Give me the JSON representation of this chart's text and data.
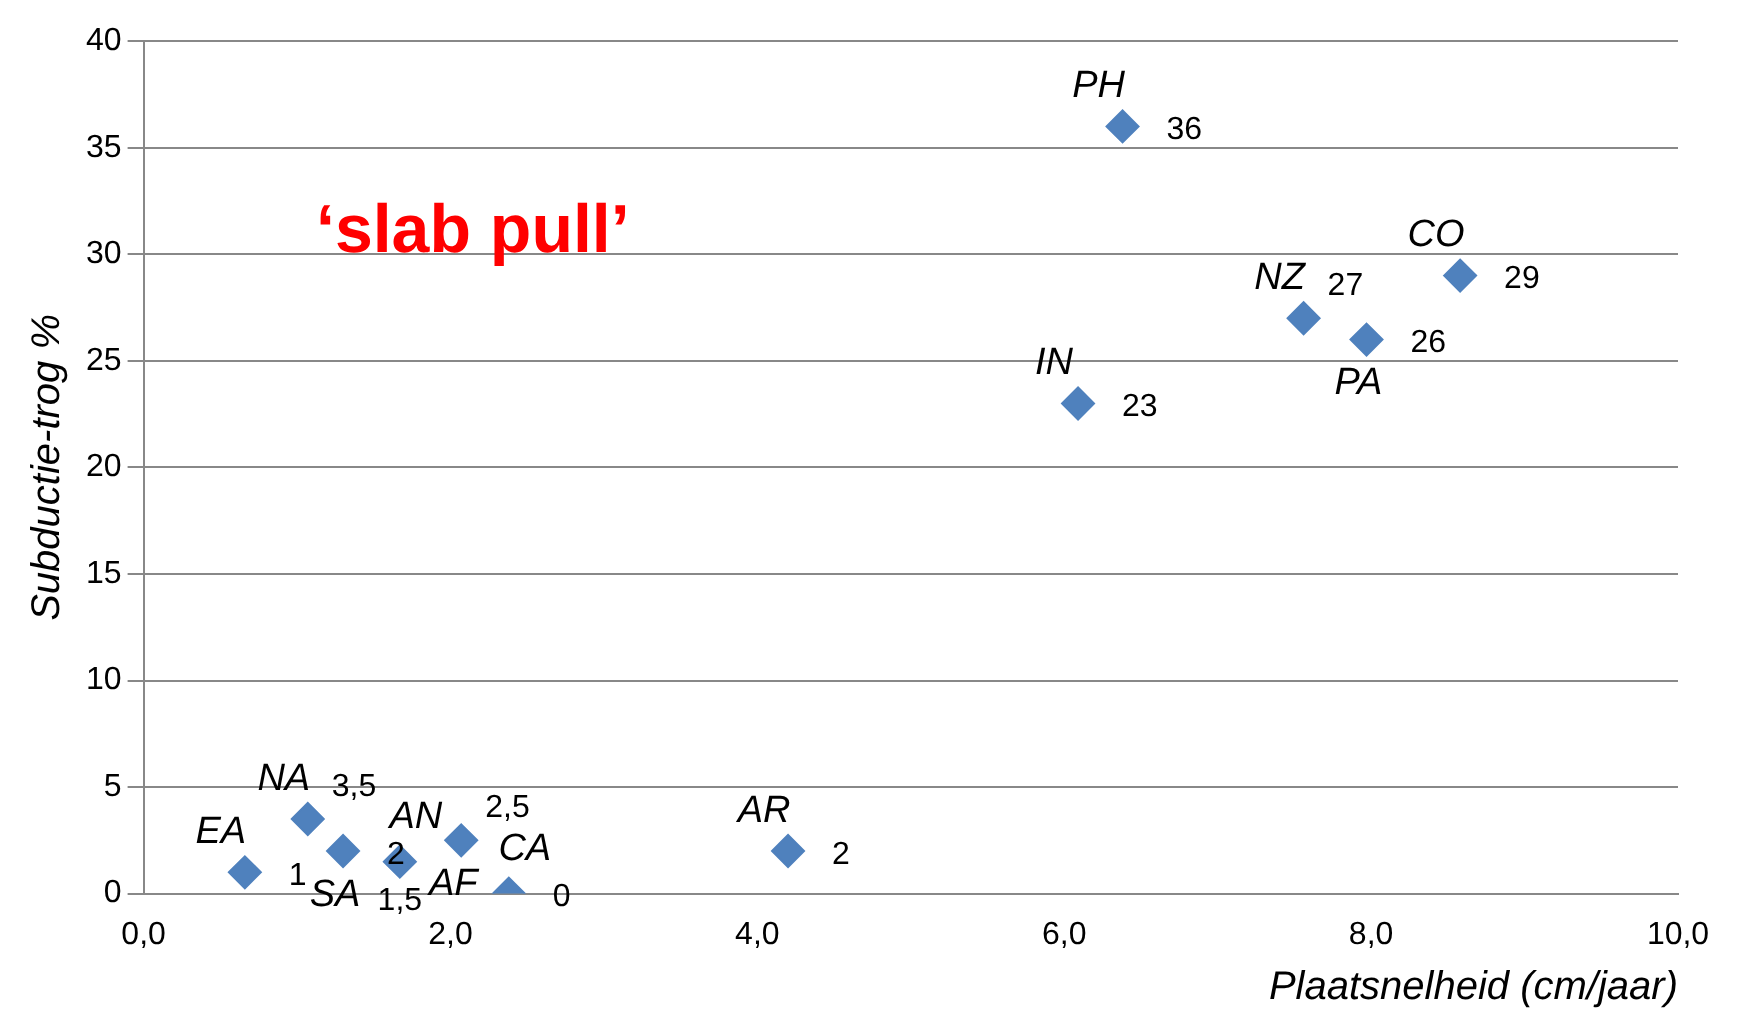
{
  "chart_data": {
    "type": "scatter",
    "xlabel": "Plaatsnelheid (cm/jaar)",
    "ylabel": "Subductie-trog %",
    "annotations": [
      "‘slab pull’",
      {
        "text": "EA",
        "x": 0.66,
        "y": 1
      },
      {
        "text": "NA",
        "x": 1.07,
        "y": 3.5
      },
      {
        "text": "SA",
        "x": 1.3,
        "y": 2
      },
      {
        "text": "AN",
        "x": 1.67,
        "y": 1.5
      },
      {
        "text": "AF",
        "x": 2.07,
        "y": 2.5
      },
      {
        "text": "CA",
        "x": 2.38,
        "y": 0
      },
      {
        "text": "AR",
        "x": 4.2,
        "y": 2
      },
      {
        "text": "IN",
        "x": 6.09,
        "y": 23
      },
      {
        "text": "PH",
        "x": 6.38,
        "y": 36
      },
      {
        "text": "NZ",
        "x": 7.56,
        "y": 27
      },
      {
        "text": "PA",
        "x": 7.97,
        "y": 26
      },
      {
        "text": "CO",
        "x": 8.58,
        "y": 29
      }
    ],
    "series": [
      {
        "color": "#4f81bd",
        "x": [
          0.66,
          1.07,
          1.3,
          1.67,
          2.07,
          2.38,
          4.2,
          6.09,
          6.38,
          7.56,
          7.97,
          8.58
        ],
        "values": [
          1,
          3.5,
          2,
          1.5,
          2.5,
          0,
          2,
          23,
          36,
          27,
          26,
          29
        ],
        "value_labels": [
          "1",
          "3,5",
          "2",
          "1,5",
          "2,5",
          "0",
          "2",
          "23",
          "36",
          "27",
          "26",
          "29"
        ]
      }
    ],
    "xlim": [
      0,
      10
    ],
    "xticks": [
      {
        "value": 0,
        "label": "0,0"
      },
      {
        "value": 2,
        "label": "2,0"
      },
      {
        "value": 4,
        "label": "4,0"
      },
      {
        "value": 6,
        "label": "6,0"
      },
      {
        "value": 8,
        "label": "8,0"
      },
      {
        "value": 10,
        "label": "10,0"
      }
    ],
    "ylim": [
      0,
      40
    ],
    "yticks": [
      0,
      5,
      10,
      15,
      20,
      25,
      30,
      35,
      40
    ],
    "grid": "y",
    "marker": "diamond",
    "legend": false
  }
}
